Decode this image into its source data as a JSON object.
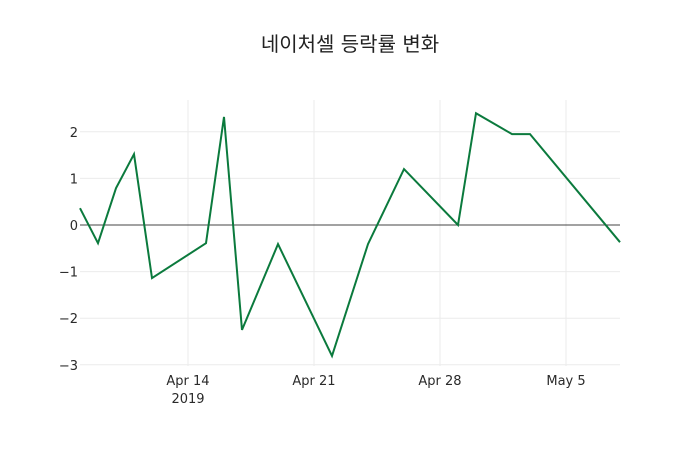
{
  "chart_data": {
    "type": "line",
    "title": "네이처셀 등락률 변화",
    "xlabel": "",
    "ylabel": "",
    "x": [
      "2019-04-08",
      "2019-04-09",
      "2019-04-10",
      "2019-04-11",
      "2019-04-12",
      "2019-04-15",
      "2019-04-16",
      "2019-04-17",
      "2019-04-19",
      "2019-04-22",
      "2019-04-24",
      "2019-04-26",
      "2019-04-29",
      "2019-04-30",
      "2019-05-02",
      "2019-05-03",
      "2019-05-08"
    ],
    "series": [
      {
        "name": "등락률",
        "color": "#0b7a3d",
        "values": [
          0.36,
          -0.39,
          0.79,
          1.52,
          -1.14,
          -0.39,
          2.32,
          -2.25,
          -0.41,
          -2.81,
          -0.41,
          1.2,
          0.0,
          2.4,
          1.95,
          1.95,
          -0.37
        ]
      }
    ],
    "x_tick_labels": [
      "Apr 14\n2019",
      "Apr 21",
      "Apr 28",
      "May 5"
    ],
    "x_ticks": [
      "2019-04-14",
      "2019-04-21",
      "2019-04-28",
      "2019-05-05"
    ],
    "y_ticks": [
      2,
      1,
      0,
      -1,
      -2,
      -3
    ],
    "y_tick_labels": [
      "2",
      "1",
      "0",
      "−1",
      "−2",
      "−3"
    ],
    "ylim": [
      -3.05,
      2.7
    ],
    "xlim": [
      "2019-04-08",
      "2019-05-08"
    ],
    "grid": true,
    "zero_line": true,
    "legend": "none"
  }
}
